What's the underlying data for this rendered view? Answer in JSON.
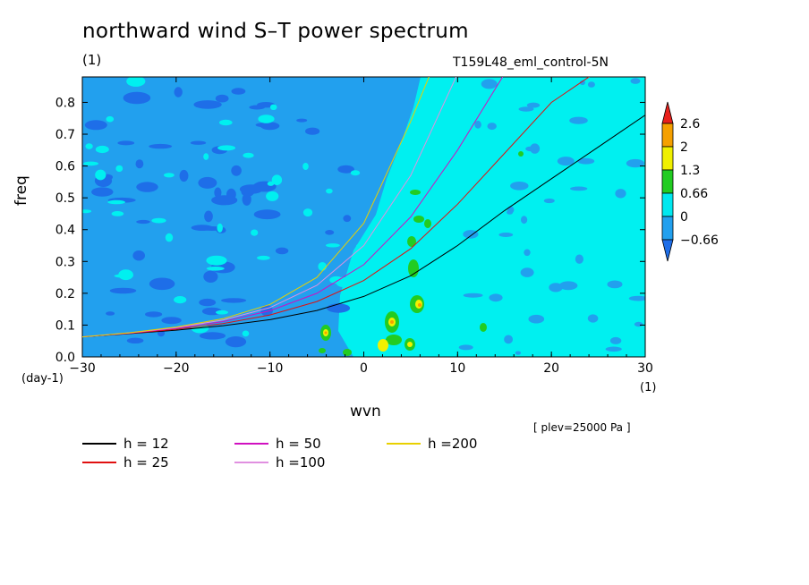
{
  "title": "northward wind S–T power spectrum",
  "y_unit_top": "(1)",
  "experiment": "T159L48_eml_control-5N",
  "y_unit_bottom": "(day-1)",
  "x_unit_right": "(1)",
  "plev": "[ plev=25000 Pa ]",
  "chart_data": {
    "type": "heatmap",
    "xlabel": "wvn",
    "ylabel": "freq",
    "xlim": [
      -30,
      30
    ],
    "ylim": [
      0,
      0.88
    ],
    "xticks": [
      "−30",
      "−20",
      "−10",
      "0",
      "10",
      "20",
      "30"
    ],
    "yticks": [
      "0.0",
      "0.1",
      "0.2",
      "0.3",
      "0.4",
      "0.5",
      "0.6",
      "0.7",
      "0.8"
    ],
    "colorbar": {
      "levels": [
        "2.6",
        "2",
        "1.3",
        "0.66",
        "0",
        "−0.66"
      ],
      "colors": [
        "#e8201c",
        "#f5a000",
        "#f0f000",
        "#22cc22",
        "#00e8f0",
        "#22a0ee",
        "#1e6ee8"
      ]
    },
    "field_colors": {
      "background": "#00f0f0",
      "low": "#22a0ee",
      "lower": "#1e6ee8",
      "high": "#22cc22",
      "higher": "#f0f000",
      "peak": "#f5a000"
    },
    "dispersion_curves": [
      {
        "name": "h = 12",
        "color": "#000000"
      },
      {
        "name": "h = 25",
        "color": "#e01010"
      },
      {
        "name": "h = 50",
        "color": "#d010c0"
      },
      {
        "name": "h =100",
        "color": "#e090e0"
      },
      {
        "name": "h =200",
        "color": "#e8d000"
      }
    ]
  }
}
